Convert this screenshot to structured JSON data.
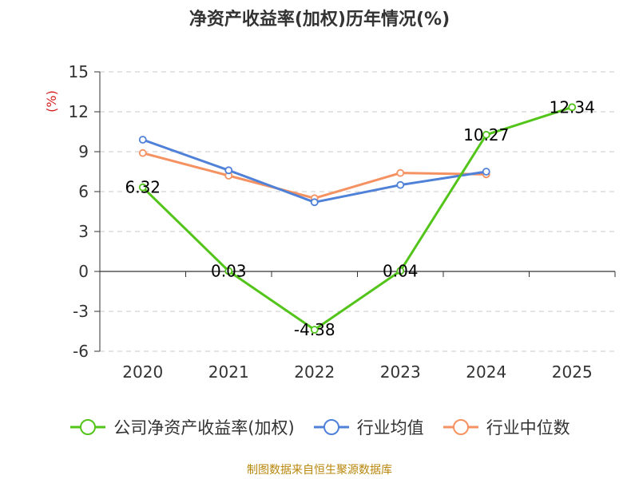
{
  "title": "净资产收益率(加权)历年情况(%)",
  "footer": "制图数据来自恒生聚源数据库",
  "chart_data": {
    "type": "line",
    "title": "净资产收益率(加权)历年情况(%)",
    "ylabel": "(%)",
    "xlabel": "",
    "categories": [
      "2020",
      "2021",
      "2022",
      "2023",
      "2024",
      "2025"
    ],
    "ylim": [
      -6,
      15
    ],
    "yticks": [
      -6,
      -3,
      0,
      3,
      6,
      9,
      12,
      15
    ],
    "grid": true,
    "legend_position": "bottom",
    "series": [
      {
        "name": "公司净资产收益率(加权)",
        "color": "#52c41a",
        "values": [
          6.32,
          0.03,
          -4.38,
          0.04,
          10.27,
          12.34
        ],
        "labels": [
          "6.32",
          "0.03",
          "-4.38",
          "0.04",
          "10.27",
          "12.34"
        ]
      },
      {
        "name": "行业均值",
        "color": "#4f81d8",
        "values": [
          9.9,
          7.6,
          5.2,
          6.5,
          7.5,
          null
        ]
      },
      {
        "name": "行业中位数",
        "color": "#f59262",
        "values": [
          8.9,
          7.2,
          5.5,
          7.4,
          7.3,
          null
        ]
      }
    ]
  }
}
